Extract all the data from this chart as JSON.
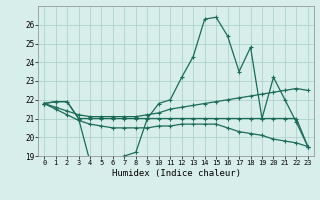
{
  "title": "",
  "xlabel": "Humidex (Indice chaleur)",
  "ylabel": "",
  "bg_color": "#d8eeea",
  "line_color": "#1a6b5a",
  "grid_color": "#a8ccc8",
  "ylim": [
    19,
    27
  ],
  "xlim": [
    -0.5,
    23.5
  ],
  "yticks": [
    19,
    20,
    21,
    22,
    23,
    24,
    25,
    26
  ],
  "xticks": [
    0,
    1,
    2,
    3,
    4,
    5,
    6,
    7,
    8,
    9,
    10,
    11,
    12,
    13,
    14,
    15,
    16,
    17,
    18,
    19,
    20,
    21,
    22,
    23
  ],
  "series": [
    {
      "x": [
        0,
        1,
        2,
        3,
        4,
        5,
        6,
        7,
        8,
        9,
        10,
        11,
        12,
        13,
        14,
        15,
        16,
        17,
        18,
        19,
        20,
        21,
        22,
        23
      ],
      "y": [
        21.8,
        21.9,
        21.9,
        21.0,
        18.7,
        18.7,
        18.8,
        19.0,
        19.2,
        21.0,
        21.0,
        21.0,
        21.0,
        21.0,
        21.0,
        21.0,
        21.0,
        21.0,
        21.0,
        21.0,
        21.0,
        21.0,
        21.0,
        19.5
      ]
    },
    {
      "x": [
        0,
        1,
        2,
        3,
        4,
        5,
        6,
        7,
        8,
        9,
        10,
        11,
        12,
        13,
        14,
        15,
        16,
        17,
        18,
        19,
        20,
        21,
        22,
        23
      ],
      "y": [
        21.8,
        21.9,
        21.9,
        21.0,
        21.0,
        21.0,
        21.0,
        21.0,
        21.0,
        21.0,
        21.8,
        22.0,
        23.2,
        24.3,
        26.3,
        26.4,
        25.4,
        23.5,
        24.8,
        21.0,
        23.2,
        22.0,
        20.8,
        19.5
      ]
    },
    {
      "x": [
        0,
        1,
        2,
        3,
        4,
        5,
        6,
        7,
        8,
        9,
        10,
        11,
        12,
        13,
        14,
        15,
        16,
        17,
        18,
        19,
        20,
        21,
        22,
        23
      ],
      "y": [
        21.8,
        21.6,
        21.4,
        21.2,
        21.1,
        21.1,
        21.1,
        21.1,
        21.1,
        21.2,
        21.3,
        21.5,
        21.6,
        21.7,
        21.8,
        21.9,
        22.0,
        22.1,
        22.2,
        22.3,
        22.4,
        22.5,
        22.6,
        22.5
      ]
    },
    {
      "x": [
        0,
        1,
        2,
        3,
        4,
        5,
        6,
        7,
        8,
        9,
        10,
        11,
        12,
        13,
        14,
        15,
        16,
        17,
        18,
        19,
        20,
        21,
        22,
        23
      ],
      "y": [
        21.8,
        21.5,
        21.2,
        20.9,
        20.7,
        20.6,
        20.5,
        20.5,
        20.5,
        20.5,
        20.6,
        20.6,
        20.7,
        20.7,
        20.7,
        20.7,
        20.5,
        20.3,
        20.2,
        20.1,
        19.9,
        19.8,
        19.7,
        19.5
      ]
    }
  ]
}
